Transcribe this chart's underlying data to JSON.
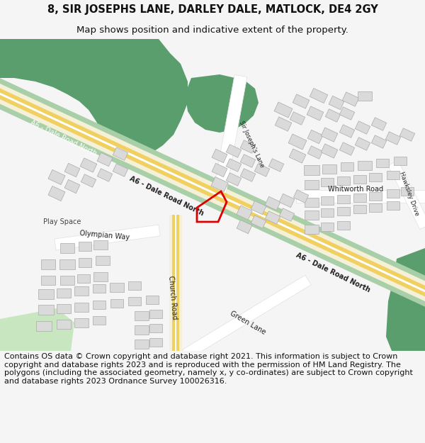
{
  "title_line1": "8, SIR JOSEPHS LANE, DARLEY DALE, MATLOCK, DE4 2GY",
  "title_line2": "Map shows position and indicative extent of the property.",
  "footer": "Contains OS data © Crown copyright and database right 2021. This information is subject to Crown copyright and database rights 2023 and is reproduced with the permission of HM Land Registry. The polygons (including the associated geometry, namely x, y co-ordinates) are subject to Crown copyright and database rights 2023 Ordnance Survey 100026316.",
  "bg": "#f5f5f5",
  "map_bg": "#ffffff",
  "green_dark": "#5a9e6e",
  "green_med": "#7db88a",
  "green_verge": "#a8cfa8",
  "green_light": "#c8e6c0",
  "road_yellow": "#f0d060",
  "road_cream": "#f5f0d8",
  "road_grey": "#e0e0e0",
  "building_fill": "#dadada",
  "building_edge": "#aaaaaa",
  "red_plot": "#dd0000",
  "title_fs": 10.5,
  "subtitle_fs": 9.5,
  "footer_fs": 8.0,
  "label_fs": 7.0,
  "label_small_fs": 6.0
}
